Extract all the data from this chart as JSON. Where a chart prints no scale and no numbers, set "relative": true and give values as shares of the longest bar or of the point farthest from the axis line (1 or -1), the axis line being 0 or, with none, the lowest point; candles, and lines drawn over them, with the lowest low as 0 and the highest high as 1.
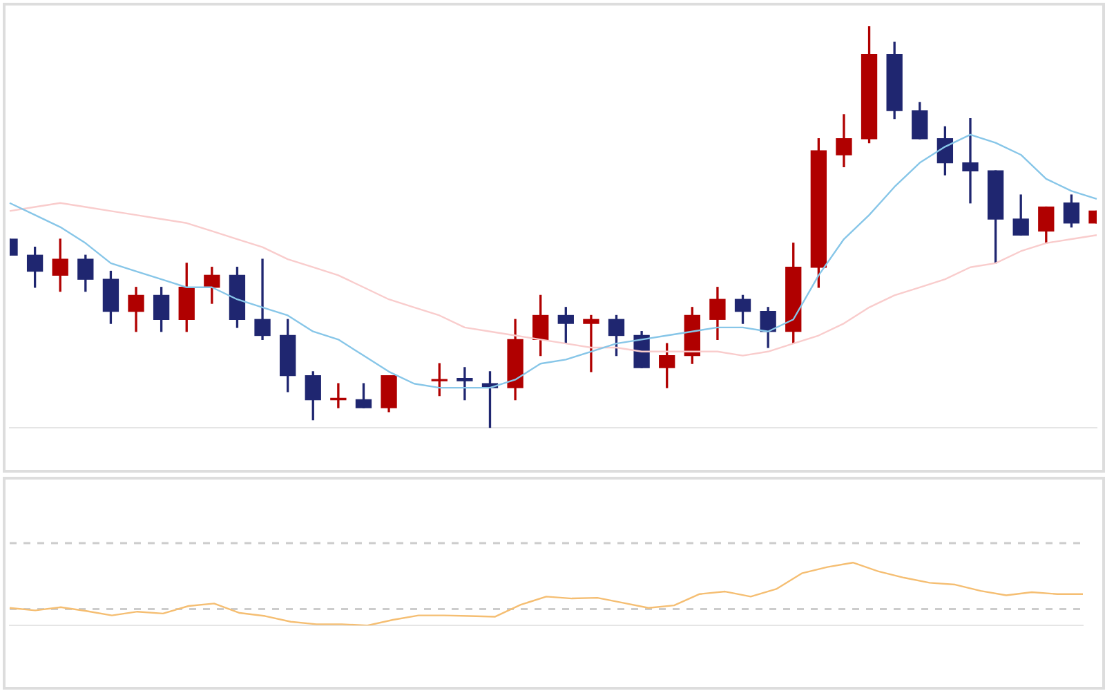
{
  "chart_data": [
    {
      "type": "candlestick",
      "relative": true,
      "categories": [
        null,
        null,
        null,
        null,
        null,
        null,
        null,
        null,
        null,
        null,
        null,
        null,
        null,
        null,
        null,
        null,
        null,
        null,
        null,
        null,
        null,
        null,
        null,
        null,
        null,
        null,
        null,
        null,
        null,
        null,
        null,
        null,
        null,
        null,
        null,
        null,
        null,
        null,
        null,
        null,
        null,
        null,
        null,
        null
      ],
      "ohlc": [
        [
          0.47,
          0.47,
          0.43,
          0.43
        ],
        [
          0.43,
          0.45,
          0.35,
          0.39
        ],
        [
          0.38,
          0.47,
          0.34,
          0.42
        ],
        [
          0.42,
          0.43,
          0.34,
          0.37
        ],
        [
          0.37,
          0.39,
          0.26,
          0.29
        ],
        [
          0.29,
          0.35,
          0.24,
          0.33
        ],
        [
          0.33,
          0.35,
          0.24,
          0.27
        ],
        [
          0.27,
          0.41,
          0.24,
          0.35
        ],
        [
          0.35,
          0.4,
          0.31,
          0.38
        ],
        [
          0.38,
          0.4,
          0.25,
          0.27
        ],
        [
          0.27,
          0.42,
          0.22,
          0.23
        ],
        [
          0.23,
          0.27,
          0.09,
          0.13
        ],
        [
          0.13,
          0.14,
          0.02,
          0.07
        ],
        [
          0.07,
          0.11,
          0.05,
          0.073
        ],
        [
          0.07,
          0.11,
          0.05,
          0.05
        ],
        [
          0.05,
          0.13,
          0.04,
          0.13
        ],
        null,
        [
          0.117,
          0.16,
          0.08,
          0.12
        ],
        [
          0.123,
          0.15,
          0.07,
          0.117
        ],
        [
          0.11,
          0.14,
          0,
          0.1
        ],
        [
          0.1,
          0.27,
          0.07,
          0.22
        ],
        [
          0.22,
          0.33,
          0.18,
          0.28
        ],
        [
          0.28,
          0.3,
          0.21,
          0.26
        ],
        [
          0.26,
          0.28,
          0.14,
          0.27
        ],
        [
          0.27,
          0.28,
          0.18,
          0.23
        ],
        [
          0.23,
          0.24,
          0.15,
          0.15
        ],
        [
          0.15,
          0.21,
          0.1,
          0.18
        ],
        [
          0.18,
          0.3,
          0.16,
          0.28
        ],
        [
          0.27,
          0.35,
          0.22,
          0.32
        ],
        [
          0.32,
          0.33,
          0.26,
          0.29
        ],
        [
          0.29,
          0.3,
          0.2,
          0.24
        ],
        [
          0.24,
          0.46,
          0.21,
          0.4
        ],
        [
          0.4,
          0.72,
          0.35,
          0.69
        ],
        [
          0.68,
          0.78,
          0.65,
          0.72
        ],
        [
          0.72,
          1,
          0.71,
          0.93
        ],
        [
          0.93,
          0.96,
          0.77,
          0.79
        ],
        [
          0.79,
          0.81,
          0.72,
          0.72
        ],
        [
          0.72,
          0.75,
          0.63,
          0.66
        ],
        [
          0.66,
          0.77,
          0.56,
          0.64
        ],
        [
          0.64,
          0.64,
          0.41,
          0.52
        ],
        [
          0.52,
          0.58,
          0.48,
          0.48
        ],
        [
          0.49,
          0.55,
          0.46,
          0.55
        ],
        [
          0.56,
          0.58,
          0.5,
          0.51
        ],
        [
          0.51,
          0.54,
          0.51,
          0.54
        ]
      ],
      "colors": [
        "#1f2670",
        "#1f2670",
        "#b00000",
        "#1f2670",
        "#1f2670",
        "#b00000",
        "#1f2670",
        "#b00000",
        "#b00000",
        "#1f2670",
        "#1f2670",
        "#1f2670",
        "#1f2670",
        "#b00000",
        "#1f2670",
        "#b00000",
        null,
        "#b00000",
        "#1f2670",
        "#1f2670",
        "#b00000",
        "#b00000",
        "#1f2670",
        "#b00000",
        "#1f2670",
        "#1f2670",
        "#b00000",
        "#b00000",
        "#b00000",
        "#1f2670",
        "#1f2670",
        "#b00000",
        "#b00000",
        "#b00000",
        "#b00000",
        "#1f2670",
        "#1f2670",
        "#1f2670",
        "#1f2670",
        "#1f2670",
        "#1f2670",
        "#b00000",
        "#1f2670",
        "#b00000"
      ],
      "series": [
        {
          "type": "line",
          "color": "#87c6e8",
          "values": [
            0.56,
            0.53,
            0.5,
            0.46,
            0.41,
            0.39,
            0.37,
            0.35,
            0.35,
            0.32,
            0.3,
            0.28,
            0.24,
            0.22,
            0.18,
            0.14,
            0.11,
            0.1,
            0.1,
            0.1,
            0.12,
            0.16,
            0.17,
            0.19,
            0.21,
            0.22,
            0.23,
            0.24,
            0.25,
            0.25,
            0.24,
            0.27,
            0.38,
            0.47,
            0.53,
            0.6,
            0.66,
            0.7,
            0.73,
            0.71,
            0.68,
            0.62,
            0.59,
            0.57
          ]
        },
        {
          "type": "line",
          "color": "#f9cccc",
          "values": [
            0.54,
            0.55,
            0.56,
            0.55,
            0.54,
            0.53,
            0.52,
            0.51,
            0.49,
            0.47,
            0.45,
            0.42,
            0.4,
            0.38,
            0.35,
            0.32,
            0.3,
            0.28,
            0.25,
            0.24,
            0.23,
            0.22,
            0.21,
            0.2,
            0.2,
            0.19,
            0.19,
            0.19,
            0.19,
            0.18,
            0.19,
            0.21,
            0.23,
            0.26,
            0.3,
            0.33,
            0.35,
            0.37,
            0.4,
            0.41,
            0.44,
            0.46,
            0.47,
            0.48
          ]
        }
      ]
    },
    {
      "type": "line",
      "relative": true,
      "categories": [
        null,
        null,
        null,
        null,
        null,
        null,
        null,
        null,
        null,
        null,
        null,
        null,
        null,
        null,
        null,
        null,
        null,
        null,
        null,
        null,
        null,
        null,
        null,
        null,
        null,
        null,
        null,
        null,
        null,
        null,
        null,
        null,
        null,
        null,
        null,
        null,
        null,
        null,
        null,
        null,
        null,
        null,
        null
      ],
      "series": [
        {
          "color": "#f5be72",
          "values": [
            0.28,
            0.24,
            0.29,
            0.23,
            0.16,
            0.22,
            0.19,
            0.31,
            0.35,
            0.2,
            0.15,
            0.06,
            0.02,
            0.02,
            0,
            0.09,
            0.16,
            0.16,
            0.15,
            0.14,
            0.33,
            0.46,
            0.43,
            0.44,
            0.36,
            0.28,
            0.32,
            0.5,
            0.54,
            0.46,
            0.58,
            0.83,
            0.93,
            1,
            0.86,
            0.76,
            0.68,
            0.65,
            0.55,
            0.48,
            0.53,
            0.5,
            0.5
          ]
        }
      ],
      "ref_lines": [
        {
          "axis": "y",
          "value": 1.31,
          "color": "#cccccc",
          "line_style": "dashed"
        },
        {
          "axis": "y",
          "value": 0.26,
          "color": "#cccccc",
          "line_style": "dashed"
        }
      ]
    }
  ]
}
